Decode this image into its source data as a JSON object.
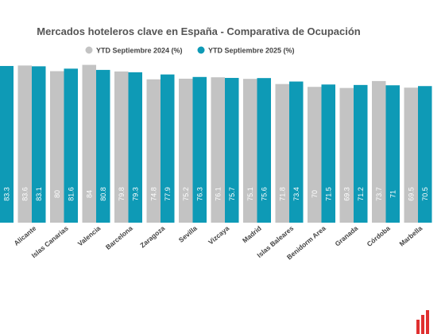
{
  "chart_data": {
    "type": "bar",
    "title": "Mercados hoteleros clave en España - Comparativa de Ocupación",
    "categories": [
      null,
      "Alicante",
      "Islas Canarias",
      "Valencia",
      "Barcelona",
      "Zaragoza",
      "Sevilla",
      "Vizcaya",
      "Madrid",
      "Islas Baleares",
      "Benidorm Area",
      "Granada",
      "Córdoba",
      "Marbella"
    ],
    "series": [
      {
        "name": "YTD Septiembre 2024 (%)",
        "color": "#c3c3c3",
        "values": [
          null,
          83.6,
          80,
          84,
          79.8,
          74.8,
          75.2,
          76.1,
          75.1,
          71.8,
          70,
          69.3,
          73.7,
          69.5
        ]
      },
      {
        "name": "YTD Septiembre 2025 (%)",
        "color": "#0e9ab6",
        "values": [
          83.3,
          83.1,
          81.6,
          80.8,
          79.3,
          77.9,
          76.3,
          75.7,
          75.6,
          73.4,
          71.5,
          71.2,
          71,
          70.5
        ]
      }
    ],
    "ylim": [
      -16.5,
      100
    ],
    "legend": "top"
  }
}
